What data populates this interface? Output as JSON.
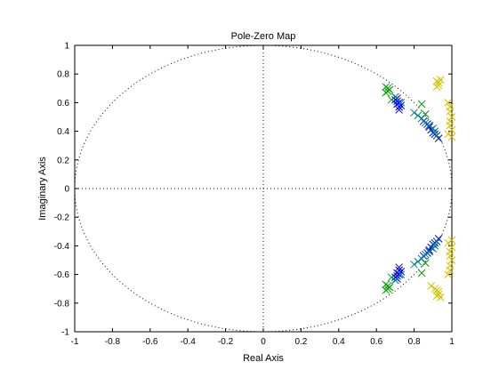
{
  "chart_data": {
    "type": "scatter",
    "title": "Pole-Zero Map",
    "xlabel": "Real Axis",
    "ylabel": "Imaginary Axis",
    "xlim": [
      -1,
      1
    ],
    "ylim": [
      -1,
      1
    ],
    "xticks": [
      -1,
      -0.8,
      -0.6,
      -0.4,
      -0.2,
      0,
      0.2,
      0.4,
      0.6,
      0.8,
      1
    ],
    "yticks": [
      -1,
      -0.8,
      -0.6,
      -0.4,
      -0.2,
      0,
      0.2,
      0.4,
      0.6,
      0.8,
      1
    ],
    "xtick_labels": [
      "-1",
      "-0.8",
      "-0.6",
      "-0.4",
      "-0.2",
      "0",
      "0.2",
      "0.4",
      "0.6",
      "0.8",
      "1"
    ],
    "ytick_labels": [
      "-1",
      "-0.8",
      "-0.6",
      "-0.4",
      "-0.2",
      "0",
      "0.2",
      "0.4",
      "0.6",
      "0.8",
      "1"
    ],
    "unit_circle": true,
    "marker": "x",
    "series": [
      {
        "color": "#00a000",
        "points": [
          [
            0.65,
            0.71
          ],
          [
            0.66,
            0.7
          ],
          [
            0.66,
            0.68
          ],
          [
            0.67,
            0.69
          ],
          [
            0.65,
            0.67
          ],
          [
            0.68,
            0.62
          ],
          [
            0.84,
            0.59
          ],
          [
            0.86,
            0.52
          ],
          [
            0.88,
            0.44
          ],
          [
            0.65,
            -0.71
          ],
          [
            0.66,
            -0.7
          ],
          [
            0.66,
            -0.68
          ],
          [
            0.67,
            -0.69
          ],
          [
            0.65,
            -0.67
          ],
          [
            0.68,
            -0.62
          ],
          [
            0.84,
            -0.59
          ],
          [
            0.86,
            -0.52
          ],
          [
            0.88,
            -0.44
          ]
        ]
      },
      {
        "color": "#0000ff",
        "points": [
          [
            0.7,
            0.62
          ],
          [
            0.71,
            0.61
          ],
          [
            0.72,
            0.6
          ],
          [
            0.71,
            0.59
          ],
          [
            0.72,
            0.57
          ],
          [
            0.73,
            0.58
          ],
          [
            0.72,
            0.55
          ],
          [
            0.71,
            0.63
          ],
          [
            0.85,
            0.47
          ],
          [
            0.87,
            0.45
          ],
          [
            0.88,
            0.43
          ],
          [
            0.89,
            0.41
          ],
          [
            0.9,
            0.39
          ],
          [
            0.91,
            0.38
          ],
          [
            0.92,
            0.37
          ],
          [
            0.93,
            0.35
          ],
          [
            0.7,
            -0.62
          ],
          [
            0.71,
            -0.61
          ],
          [
            0.72,
            -0.6
          ],
          [
            0.71,
            -0.59
          ],
          [
            0.72,
            -0.57
          ],
          [
            0.73,
            -0.58
          ],
          [
            0.72,
            -0.55
          ],
          [
            0.71,
            -0.63
          ],
          [
            0.85,
            -0.47
          ],
          [
            0.87,
            -0.45
          ],
          [
            0.88,
            -0.43
          ],
          [
            0.89,
            -0.41
          ],
          [
            0.9,
            -0.39
          ],
          [
            0.91,
            -0.38
          ],
          [
            0.92,
            -0.37
          ],
          [
            0.93,
            -0.35
          ]
        ]
      },
      {
        "color": "#008080",
        "points": [
          [
            0.8,
            0.53
          ],
          [
            0.82,
            0.51
          ],
          [
            0.84,
            0.49
          ],
          [
            0.86,
            0.46
          ],
          [
            0.88,
            0.44
          ],
          [
            0.9,
            0.42
          ],
          [
            0.91,
            0.4
          ],
          [
            0.92,
            0.37
          ],
          [
            0.7,
            0.64
          ],
          [
            0.73,
            0.6
          ],
          [
            0.8,
            -0.53
          ],
          [
            0.82,
            -0.51
          ],
          [
            0.84,
            -0.49
          ],
          [
            0.86,
            -0.46
          ],
          [
            0.88,
            -0.44
          ],
          [
            0.9,
            -0.42
          ],
          [
            0.91,
            -0.4
          ],
          [
            0.92,
            -0.37
          ],
          [
            0.7,
            -0.64
          ],
          [
            0.73,
            -0.6
          ]
        ]
      },
      {
        "color": "#d4c000",
        "points": [
          [
            0.92,
            0.75
          ],
          [
            0.93,
            0.74
          ],
          [
            0.94,
            0.76
          ],
          [
            0.93,
            0.72
          ],
          [
            0.92,
            0.71
          ],
          [
            0.98,
            0.6
          ],
          [
            0.99,
            0.57
          ],
          [
            0.99,
            0.54
          ],
          [
            1.0,
            0.5
          ],
          [
            0.99,
            0.47
          ],
          [
            0.99,
            0.44
          ],
          [
            1.0,
            0.41
          ],
          [
            0.98,
            0.38
          ],
          [
            1.0,
            0.36
          ],
          [
            0.92,
            -0.75
          ],
          [
            0.93,
            -0.74
          ],
          [
            0.94,
            -0.76
          ],
          [
            0.93,
            -0.72
          ],
          [
            0.92,
            -0.71
          ],
          [
            0.89,
            -0.68
          ],
          [
            0.91,
            -0.7
          ],
          [
            0.98,
            -0.6
          ],
          [
            0.99,
            -0.57
          ],
          [
            0.99,
            -0.54
          ],
          [
            1.0,
            -0.5
          ],
          [
            0.99,
            -0.47
          ],
          [
            0.99,
            -0.44
          ],
          [
            1.0,
            -0.41
          ],
          [
            0.98,
            -0.38
          ],
          [
            1.0,
            -0.36
          ]
        ]
      }
    ]
  }
}
